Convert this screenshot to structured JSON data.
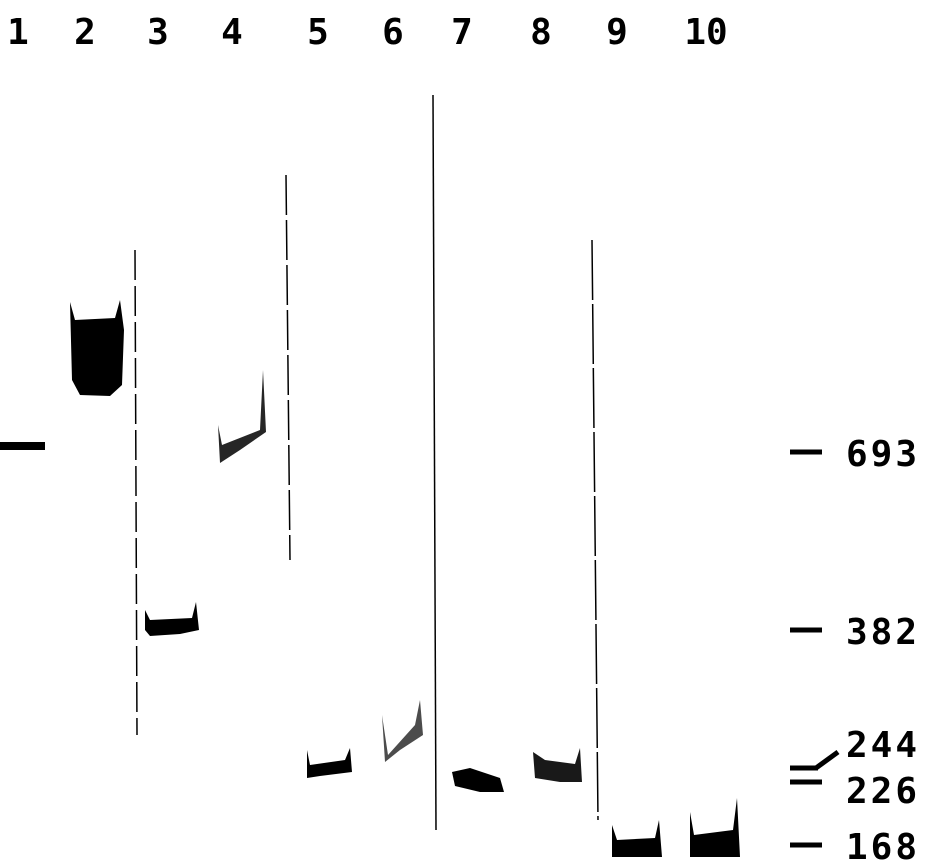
{
  "lanes": [
    "1",
    "2",
    "3",
    "4",
    "5",
    "6",
    "7",
    "8",
    "9",
    "10"
  ],
  "markers": [
    "693",
    "382",
    "244",
    "226",
    "168"
  ]
}
